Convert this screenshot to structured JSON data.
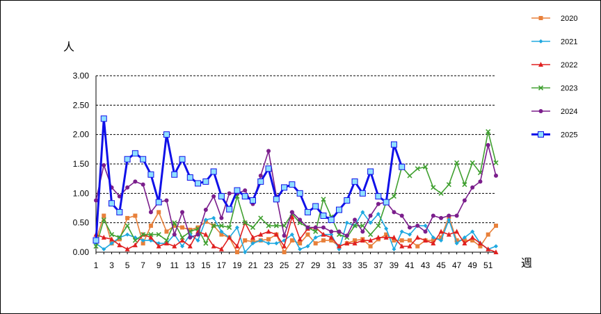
{
  "chart_data": {
    "type": "line",
    "ylabel": "人",
    "xlabel": "週",
    "ylim": [
      0,
      3
    ],
    "yticks": [
      "0.00",
      "0.50",
      "1.00",
      "1.50",
      "2.00",
      "2.50",
      "3.00"
    ],
    "xlim": [
      1,
      52
    ],
    "xticks": [
      1,
      3,
      5,
      7,
      9,
      11,
      13,
      15,
      17,
      19,
      21,
      23,
      25,
      27,
      29,
      31,
      33,
      35,
      37,
      39,
      41,
      43,
      45,
      47,
      49,
      51
    ],
    "grid": "horizontal-dashed",
    "legend_position": "right",
    "series": [
      {
        "name": "2020",
        "color": "#E8803A",
        "marker": "square",
        "values": [
          0.2,
          0.62,
          0.15,
          0.22,
          0.58,
          0.62,
          0.15,
          0.45,
          0.68,
          0.35,
          0.45,
          0.42,
          0.38,
          0.42,
          0.52,
          0.45,
          0.3,
          0.25,
          0.0,
          0.2,
          0.18,
          0.2,
          0.22,
          0.3,
          0.0,
          0.2,
          0.15,
          0.3,
          0.15,
          0.2,
          0.2,
          0.1,
          0.15,
          0.2,
          0.22,
          0.1,
          0.22,
          0.3,
          0.2,
          0.2,
          0.2,
          0.1,
          0.2,
          0.2,
          0.25,
          0.6,
          0.2,
          0.2,
          0.2,
          0.1,
          0.3,
          0.45
        ]
      },
      {
        "name": "2021",
        "color": "#1EA8E0",
        "marker": "diamond",
        "values": [
          0.15,
          0.05,
          0.15,
          0.25,
          0.3,
          0.25,
          0.2,
          0.2,
          0.15,
          0.15,
          0.3,
          0.1,
          0.3,
          0.2,
          0.55,
          0.58,
          0.35,
          0.25,
          0.42,
          0.0,
          0.15,
          0.2,
          0.15,
          0.15,
          0.2,
          0.3,
          0.05,
          0.1,
          0.25,
          0.3,
          0.3,
          0.05,
          0.5,
          0.45,
          0.68,
          0.5,
          0.65,
          0.4,
          0.05,
          0.35,
          0.3,
          0.45,
          0.45,
          0.25,
          0.2,
          0.55,
          0.15,
          0.25,
          0.35,
          0.15,
          0.05,
          0.1
        ]
      },
      {
        "name": "2022",
        "color": "#E02020",
        "marker": "triangle",
        "values": [
          0.3,
          0.25,
          0.22,
          0.12,
          0.05,
          0.12,
          0.3,
          0.25,
          0.1,
          0.15,
          0.1,
          0.2,
          0.1,
          0.35,
          0.3,
          0.1,
          0.05,
          0.25,
          0.1,
          0.5,
          0.25,
          0.3,
          0.35,
          0.3,
          0.1,
          0.6,
          0.22,
          0.4,
          0.42,
          0.3,
          0.25,
          0.1,
          0.15,
          0.15,
          0.2,
          0.2,
          0.25,
          0.25,
          0.25,
          0.1,
          0.1,
          0.25,
          0.2,
          0.15,
          0.35,
          0.3,
          0.35,
          0.15,
          0.25,
          0.15,
          0.05,
          0.0
        ]
      },
      {
        "name": "2023",
        "color": "#40A030",
        "marker": "cross",
        "values": [
          0.1,
          0.55,
          0.3,
          0.25,
          0.45,
          0.2,
          0.3,
          0.3,
          0.3,
          0.2,
          0.5,
          0.25,
          0.35,
          0.4,
          0.15,
          0.45,
          0.45,
          0.42,
          0.95,
          0.5,
          0.42,
          0.58,
          0.45,
          0.45,
          0.45,
          0.65,
          0.5,
          0.42,
          0.35,
          0.9,
          0.6,
          0.3,
          0.25,
          0.45,
          0.45,
          0.3,
          0.45,
          0.85,
          0.95,
          1.45,
          1.3,
          1.42,
          1.45,
          1.1,
          1.0,
          1.15,
          1.52,
          1.15,
          1.52,
          1.35,
          2.05,
          1.52
        ]
      },
      {
        "name": "2024",
        "color": "#7B1E8C",
        "marker": "circle",
        "values": [
          0.88,
          1.48,
          1.1,
          0.95,
          1.1,
          1.2,
          1.15,
          0.68,
          0.85,
          0.88,
          0.3,
          0.68,
          0.25,
          0.3,
          0.72,
          0.95,
          0.58,
          1.0,
          1.0,
          1.05,
          0.82,
          1.3,
          1.72,
          0.95,
          0.28,
          0.68,
          0.55,
          0.42,
          0.42,
          0.42,
          0.35,
          0.35,
          0.28,
          0.55,
          0.35,
          0.62,
          0.82,
          0.85,
          0.68,
          0.62,
          0.42,
          0.45,
          0.35,
          0.62,
          0.58,
          0.62,
          0.62,
          0.88,
          1.1,
          1.2,
          1.82,
          1.3
        ]
      },
      {
        "name": "2025",
        "color": "#1010E8",
        "marker": "square-open",
        "width": 3,
        "values": [
          0.2,
          2.27,
          0.83,
          0.68,
          1.58,
          1.68,
          1.58,
          1.32,
          0.85,
          2.0,
          1.32,
          1.58,
          1.27,
          1.17,
          1.2,
          1.37,
          0.95,
          0.73,
          1.05,
          0.95,
          0.88,
          1.2,
          1.42,
          0.9,
          1.1,
          1.15,
          1.0,
          0.68,
          0.78,
          0.62,
          0.55,
          0.72,
          0.88,
          1.2,
          1.0,
          1.37,
          0.95,
          0.85,
          1.83,
          1.45
        ]
      }
    ]
  }
}
